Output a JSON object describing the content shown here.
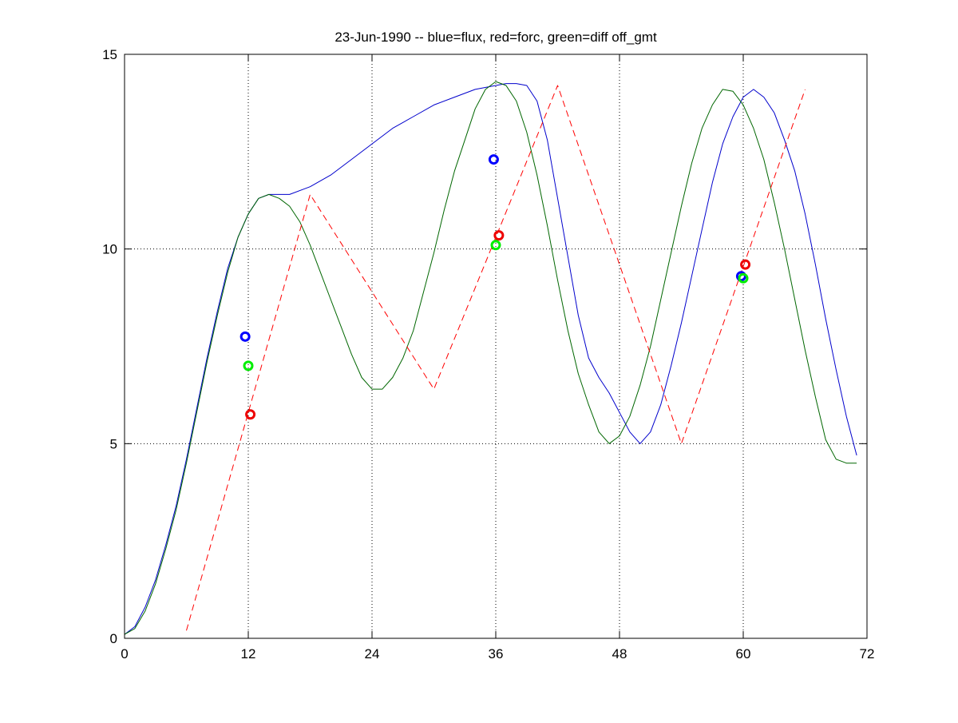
{
  "chart_data": {
    "type": "line",
    "title": "23-Jun-1990 -- blue=flux, red=forc, green=diff off_gmt",
    "xlabel": "",
    "ylabel": "",
    "xlim": [
      0,
      72
    ],
    "ylim": [
      0,
      15
    ],
    "x_ticks": [
      0,
      12,
      24,
      36,
      48,
      60,
      72
    ],
    "y_ticks": [
      0,
      5,
      10,
      15
    ],
    "x_tick_labels": [
      "0",
      "12",
      "24",
      "36",
      "48",
      "60",
      "72"
    ],
    "y_tick_labels": [
      "0",
      "5",
      "10",
      "15"
    ],
    "grid": "dotted",
    "series": [
      {
        "color": "#0000cc",
        "style": "solid",
        "x": [
          0,
          1,
          2,
          3,
          4,
          5,
          6,
          7,
          8,
          9,
          10,
          11,
          12,
          13,
          14,
          15,
          16,
          18,
          20,
          22,
          24,
          26,
          28,
          30,
          32,
          34,
          36,
          37,
          38,
          39,
          40,
          41,
          42,
          43,
          44,
          45,
          46,
          47,
          48,
          49,
          50,
          51,
          52,
          53,
          54,
          55,
          56,
          57,
          58,
          59,
          60,
          61,
          62,
          63,
          64,
          65,
          66,
          67,
          68,
          69,
          70,
          71
        ],
        "y": [
          0.1,
          0.3,
          0.8,
          1.5,
          2.4,
          3.4,
          4.6,
          5.9,
          7.2,
          8.4,
          9.5,
          10.3,
          10.9,
          11.3,
          11.4,
          11.4,
          11.4,
          11.6,
          11.9,
          12.3,
          12.7,
          13.1,
          13.4,
          13.7,
          13.9,
          14.1,
          14.2,
          14.25,
          14.25,
          14.2,
          13.8,
          12.8,
          11.3,
          9.8,
          8.3,
          7.2,
          6.7,
          6.3,
          5.8,
          5.3,
          5.0,
          5.3,
          6.0,
          7.0,
          8.1,
          9.3,
          10.5,
          11.7,
          12.7,
          13.4,
          13.9,
          14.1,
          13.9,
          13.5,
          12.8,
          12.0,
          10.9,
          9.6,
          8.2,
          6.9,
          5.7,
          4.7
        ]
      },
      {
        "color": "#006600",
        "style": "solid",
        "x": [
          0,
          1,
          2,
          3,
          4,
          5,
          6,
          7,
          8,
          9,
          10,
          11,
          12,
          13,
          14,
          15,
          16,
          17,
          18,
          19,
          20,
          21,
          22,
          23,
          24,
          25,
          26,
          27,
          28,
          29,
          30,
          31,
          32,
          33,
          34,
          35,
          36,
          37,
          38,
          39,
          40,
          41,
          42,
          43,
          44,
          45,
          46,
          47,
          48,
          49,
          50,
          51,
          52,
          53,
          54,
          55,
          56,
          57,
          58,
          59,
          60,
          61,
          62,
          63,
          64,
          65,
          66,
          67,
          68,
          69,
          70,
          71
        ],
        "y": [
          0.1,
          0.25,
          0.7,
          1.4,
          2.3,
          3.3,
          4.5,
          5.8,
          7.1,
          8.3,
          9.4,
          10.3,
          10.9,
          11.3,
          11.4,
          11.3,
          11.1,
          10.7,
          10.1,
          9.4,
          8.7,
          8.0,
          7.3,
          6.7,
          6.4,
          6.4,
          6.7,
          7.2,
          7.9,
          8.9,
          9.9,
          11.0,
          12.0,
          12.8,
          13.6,
          14.1,
          14.3,
          14.2,
          13.8,
          13.0,
          11.9,
          10.6,
          9.2,
          7.9,
          6.8,
          6.0,
          5.3,
          5.0,
          5.2,
          5.7,
          6.5,
          7.5,
          8.7,
          9.9,
          11.1,
          12.2,
          13.1,
          13.7,
          14.1,
          14.05,
          13.7,
          13.1,
          12.3,
          11.2,
          10.0,
          8.7,
          7.4,
          6.2,
          5.1,
          4.6,
          4.5,
          4.5
        ]
      },
      {
        "color": "#ff0000",
        "style": "dashed",
        "x": [
          6,
          18,
          30,
          42,
          54,
          66
        ],
        "y": [
          0.2,
          11.4,
          6.4,
          14.2,
          5.0,
          14.1
        ]
      }
    ],
    "markers": [
      {
        "x": 11.7,
        "y": 7.75,
        "color": "#0000ff"
      },
      {
        "x": 12.0,
        "y": 7.0,
        "color": "#00ee00"
      },
      {
        "x": 12.2,
        "y": 5.75,
        "color": "#ee0000"
      },
      {
        "x": 35.8,
        "y": 12.3,
        "color": "#0000ff"
      },
      {
        "x": 36.3,
        "y": 10.35,
        "color": "#ee0000"
      },
      {
        "x": 36.0,
        "y": 10.1,
        "color": "#00ee00"
      },
      {
        "x": 59.8,
        "y": 9.3,
        "color": "#0000ff"
      },
      {
        "x": 60.0,
        "y": 9.25,
        "color": "#00ee00"
      },
      {
        "x": 60.2,
        "y": 9.6,
        "color": "#ee0000"
      }
    ]
  }
}
